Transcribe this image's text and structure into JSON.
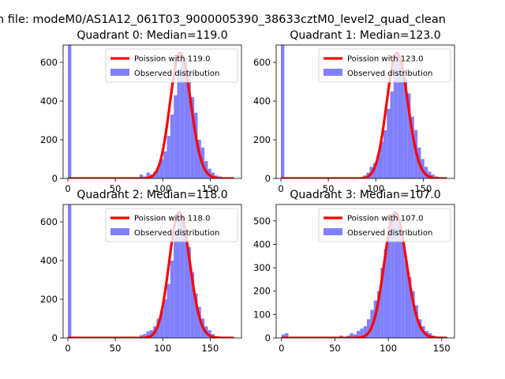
{
  "suptitle": "n file: modeM0/AS1A12_061T03_9000005390_38633cztM0_level2_quad_clean",
  "colors": {
    "poisson": "#ff0000",
    "observed": "#8080ff"
  },
  "chart_data": [
    {
      "type": "bar",
      "title": "Quadrant 0: Median=119.0",
      "median": 119.0,
      "xlim": [
        -5,
        183
      ],
      "ylim": [
        0,
        690
      ],
      "xticks": [
        0,
        50,
        100,
        150
      ],
      "yticks": [
        0,
        200,
        400,
        600
      ],
      "legend": [
        "Poission with 119.0",
        "Observed distribution"
      ],
      "bin_width": 3.6,
      "bins": [
        {
          "x": 0,
          "y": 690
        },
        {
          "x": 75.6,
          "y": 20
        },
        {
          "x": 79.2,
          "y": 10
        },
        {
          "x": 82.8,
          "y": 30
        },
        {
          "x": 86.4,
          "y": 20
        },
        {
          "x": 90,
          "y": 35
        },
        {
          "x": 93.6,
          "y": 60
        },
        {
          "x": 97.2,
          "y": 100
        },
        {
          "x": 100.8,
          "y": 140
        },
        {
          "x": 104.4,
          "y": 220
        },
        {
          "x": 108,
          "y": 330
        },
        {
          "x": 111.6,
          "y": 430
        },
        {
          "x": 115.2,
          "y": 560
        },
        {
          "x": 118.8,
          "y": 630
        },
        {
          "x": 122.4,
          "y": 620
        },
        {
          "x": 126,
          "y": 560
        },
        {
          "x": 129.6,
          "y": 420
        },
        {
          "x": 133.2,
          "y": 340
        },
        {
          "x": 136.8,
          "y": 200
        },
        {
          "x": 140.4,
          "y": 160
        },
        {
          "x": 144,
          "y": 90
        },
        {
          "x": 147.6,
          "y": 50
        },
        {
          "x": 151.2,
          "y": 30
        },
        {
          "x": 154.8,
          "y": 15
        },
        {
          "x": 158.4,
          "y": 10
        },
        {
          "x": 162,
          "y": 5
        }
      ],
      "poisson_range": [
        0,
        175
      ]
    },
    {
      "type": "bar",
      "title": "Quadrant 1: Median=123.0",
      "median": 123.0,
      "xlim": [
        -5,
        183
      ],
      "ylim": [
        0,
        690
      ],
      "xticks": [
        0,
        50,
        100,
        150
      ],
      "yticks": [
        0,
        200,
        400,
        600
      ],
      "legend": [
        "Poission with 123.0",
        "Observed distribution"
      ],
      "bin_width": 3.6,
      "bins": [
        {
          "x": 0,
          "y": 690
        },
        {
          "x": 86.4,
          "y": 15
        },
        {
          "x": 90,
          "y": 30
        },
        {
          "x": 93.6,
          "y": 60
        },
        {
          "x": 97.2,
          "y": 80
        },
        {
          "x": 100.8,
          "y": 120
        },
        {
          "x": 104.4,
          "y": 190
        },
        {
          "x": 108,
          "y": 250
        },
        {
          "x": 111.6,
          "y": 360
        },
        {
          "x": 115.2,
          "y": 450
        },
        {
          "x": 118.8,
          "y": 610
        },
        {
          "x": 122.4,
          "y": 640
        },
        {
          "x": 126,
          "y": 600
        },
        {
          "x": 129.6,
          "y": 520
        },
        {
          "x": 133.2,
          "y": 440
        },
        {
          "x": 136.8,
          "y": 320
        },
        {
          "x": 140.4,
          "y": 250
        },
        {
          "x": 144,
          "y": 160
        },
        {
          "x": 147.6,
          "y": 100
        },
        {
          "x": 151.2,
          "y": 60
        },
        {
          "x": 154.8,
          "y": 35
        },
        {
          "x": 158.4,
          "y": 20
        },
        {
          "x": 162,
          "y": 10
        },
        {
          "x": 165.6,
          "y": 5
        }
      ],
      "poisson_range": [
        0,
        175
      ]
    },
    {
      "type": "bar",
      "title": "Quadrant 2: Median=118.0",
      "median": 118.0,
      "xlim": [
        -5,
        183
      ],
      "ylim": [
        0,
        690
      ],
      "xticks": [
        0,
        50,
        100,
        150
      ],
      "yticks": [
        0,
        200,
        400,
        600
      ],
      "legend": [
        "Poission with 118.0",
        "Observed distribution"
      ],
      "bin_width": 3.6,
      "bins": [
        {
          "x": 0,
          "y": 690
        },
        {
          "x": 75.6,
          "y": 15
        },
        {
          "x": 79.2,
          "y": 20
        },
        {
          "x": 82.8,
          "y": 35
        },
        {
          "x": 86.4,
          "y": 40
        },
        {
          "x": 90,
          "y": 60
        },
        {
          "x": 93.6,
          "y": 100
        },
        {
          "x": 97.2,
          "y": 140
        },
        {
          "x": 100.8,
          "y": 200
        },
        {
          "x": 104.4,
          "y": 280
        },
        {
          "x": 108,
          "y": 400
        },
        {
          "x": 111.6,
          "y": 560
        },
        {
          "x": 115.2,
          "y": 620
        },
        {
          "x": 118.8,
          "y": 600
        },
        {
          "x": 122.4,
          "y": 570
        },
        {
          "x": 126,
          "y": 470
        },
        {
          "x": 129.6,
          "y": 340
        },
        {
          "x": 133.2,
          "y": 230
        },
        {
          "x": 136.8,
          "y": 160
        },
        {
          "x": 140.4,
          "y": 100
        },
        {
          "x": 144,
          "y": 60
        },
        {
          "x": 147.6,
          "y": 40
        },
        {
          "x": 151.2,
          "y": 20
        },
        {
          "x": 154.8,
          "y": 10
        }
      ],
      "poisson_range": [
        0,
        175
      ]
    },
    {
      "type": "bar",
      "title": "Quadrant 3: Median=107.0",
      "median": 107.0,
      "xlim": [
        -5,
        162
      ],
      "ylim": [
        0,
        570
      ],
      "xticks": [
        0,
        50,
        100,
        150
      ],
      "yticks": [
        0,
        100,
        200,
        300,
        400,
        500
      ],
      "legend": [
        "Poission with 107.0",
        "Observed distribution"
      ],
      "bin_width": 3.2,
      "bins": [
        {
          "x": 0,
          "y": 15
        },
        {
          "x": 3.2,
          "y": 20
        },
        {
          "x": 54.4,
          "y": 10
        },
        {
          "x": 60.8,
          "y": 10
        },
        {
          "x": 64,
          "y": 20
        },
        {
          "x": 67.2,
          "y": 15
        },
        {
          "x": 70.4,
          "y": 30
        },
        {
          "x": 73.6,
          "y": 40
        },
        {
          "x": 76.8,
          "y": 50
        },
        {
          "x": 80,
          "y": 80
        },
        {
          "x": 83.2,
          "y": 120
        },
        {
          "x": 86.4,
          "y": 160
        },
        {
          "x": 89.6,
          "y": 200
        },
        {
          "x": 92.8,
          "y": 300
        },
        {
          "x": 96,
          "y": 380
        },
        {
          "x": 99.2,
          "y": 480
        },
        {
          "x": 102.4,
          "y": 510
        },
        {
          "x": 105.6,
          "y": 530
        },
        {
          "x": 108.8,
          "y": 490
        },
        {
          "x": 112,
          "y": 420
        },
        {
          "x": 115.2,
          "y": 330
        },
        {
          "x": 118.4,
          "y": 260
        },
        {
          "x": 121.6,
          "y": 200
        },
        {
          "x": 124.8,
          "y": 140
        },
        {
          "x": 128,
          "y": 80
        },
        {
          "x": 131.2,
          "y": 50
        },
        {
          "x": 134.4,
          "y": 30
        },
        {
          "x": 137.6,
          "y": 20
        },
        {
          "x": 140.8,
          "y": 10
        }
      ],
      "poisson_range": [
        0,
        155
      ]
    }
  ]
}
